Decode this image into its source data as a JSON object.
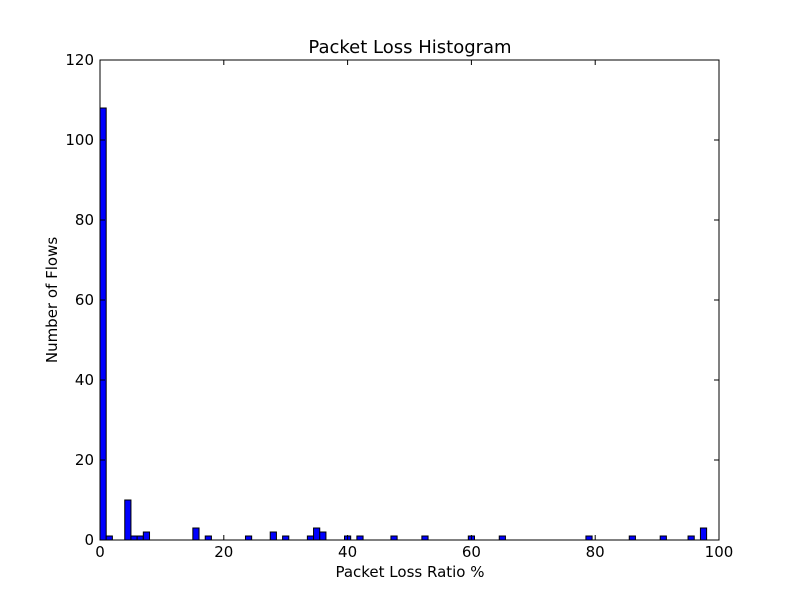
{
  "chart_data": {
    "type": "bar",
    "title": "Packet Loss Histogram",
    "xlabel": "Packet Loss Ratio %",
    "ylabel": "Number of Flows",
    "xlim": [
      0,
      100
    ],
    "ylim": [
      0,
      120
    ],
    "grid": false,
    "xticks": [
      "0",
      "20",
      "40",
      "60",
      "80",
      "100"
    ],
    "yticks": [
      "0",
      "20",
      "40",
      "60",
      "80",
      "100",
      "120"
    ],
    "bin_width": 1,
    "bar_color": "#0000ff",
    "edge_color": "#000000",
    "bins": [
      {
        "x": 0,
        "value": 108
      },
      {
        "x": 1,
        "value": 1
      },
      {
        "x": 4,
        "value": 10
      },
      {
        "x": 5,
        "value": 1
      },
      {
        "x": 6,
        "value": 1
      },
      {
        "x": 7,
        "value": 2
      },
      {
        "x": 15,
        "value": 3
      },
      {
        "x": 17,
        "value": 1
      },
      {
        "x": 23.5,
        "value": 1
      },
      {
        "x": 27.5,
        "value": 2
      },
      {
        "x": 29.5,
        "value": 1
      },
      {
        "x": 33.5,
        "value": 1
      },
      {
        "x": 34.5,
        "value": 3
      },
      {
        "x": 35.5,
        "value": 2
      },
      {
        "x": 39.5,
        "value": 1
      },
      {
        "x": 41.5,
        "value": 1
      },
      {
        "x": 47,
        "value": 1
      },
      {
        "x": 52,
        "value": 1
      },
      {
        "x": 59.5,
        "value": 1
      },
      {
        "x": 64.5,
        "value": 1
      },
      {
        "x": 78.5,
        "value": 1
      },
      {
        "x": 85.5,
        "value": 1
      },
      {
        "x": 90.5,
        "value": 1
      },
      {
        "x": 95,
        "value": 1
      },
      {
        "x": 97,
        "value": 3
      }
    ]
  }
}
